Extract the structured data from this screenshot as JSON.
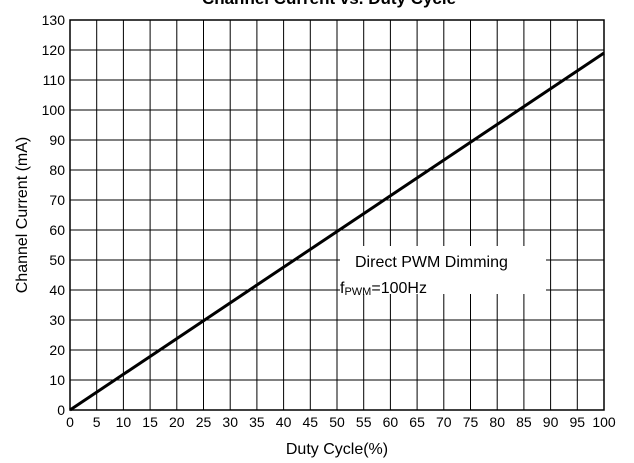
{
  "chart_data": {
    "type": "line",
    "title": "Channel Current vs. Duty Cycle",
    "xlabel": "Duty Cycle(%)",
    "ylabel": "Channel Current (mA)",
    "xlim": [
      0,
      100
    ],
    "ylim": [
      0,
      130
    ],
    "x_ticks": [
      "0",
      "5",
      "10",
      "15",
      "20",
      "25",
      "30",
      "35",
      "40",
      "45",
      "50",
      "55",
      "60",
      "65",
      "70",
      "75",
      "80",
      "85",
      "90",
      "95",
      "100"
    ],
    "y_ticks": [
      "0",
      "10",
      "20",
      "30",
      "40",
      "50",
      "60",
      "70",
      "80",
      "90",
      "100",
      "110",
      "120",
      "130"
    ],
    "grid": true,
    "series": [
      {
        "x": [
          0,
          100
        ],
        "y": [
          0,
          119
        ],
        "color": "#000000"
      }
    ],
    "annotation": {
      "line1": "Direct PWM Dimming",
      "line2_prefix": "f",
      "line2_sub": "PWM",
      "line2_suffix": "=100Hz"
    }
  }
}
